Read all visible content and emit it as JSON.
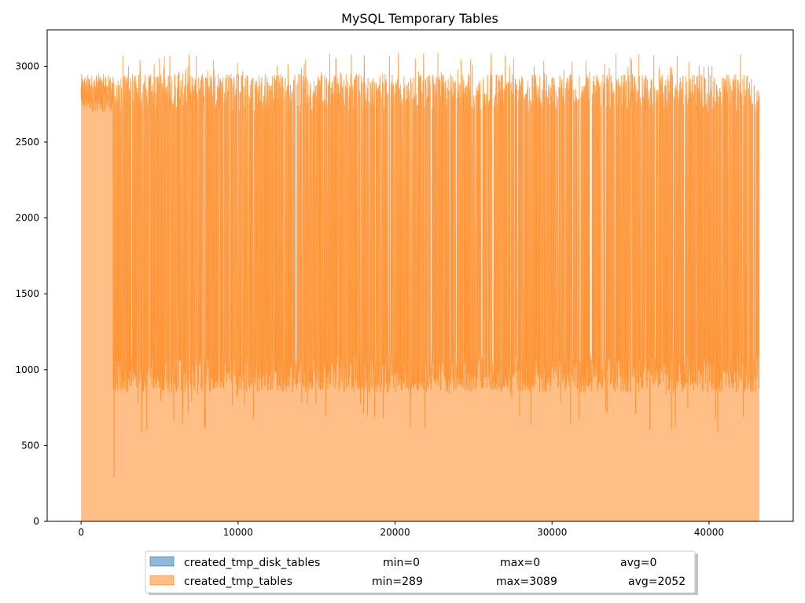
{
  "chart_data": {
    "type": "area",
    "title": "MySQL Temporary Tables",
    "xlabel": "",
    "ylabel": "",
    "xlim": [
      -2160,
      45360
    ],
    "ylim": [
      0,
      3240
    ],
    "x_ticks": [
      0,
      10000,
      20000,
      30000,
      40000
    ],
    "x_tick_labels": [
      "0",
      "10000",
      "20000",
      "30000",
      "40000"
    ],
    "y_ticks": [
      0,
      500,
      1000,
      1500,
      2000,
      2500,
      3000
    ],
    "y_tick_labels": [
      "0",
      "500",
      "1000",
      "1500",
      "2000",
      "2500",
      "3000"
    ],
    "x_range": [
      0,
      43200
    ],
    "grid": false,
    "legend_position": "bottom-center",
    "series": [
      {
        "name": "created_tmp_disk_tables",
        "color": "#1f77b4",
        "min_label": "min=0",
        "max_label": "max=0",
        "avg_label": "avg=0",
        "min": 0,
        "max": 0,
        "avg": 0
      },
      {
        "name": "created_tmp_tables",
        "color": "#ff7f0e",
        "min_label": "min=289",
        "max_label": "max=3089",
        "avg_label": "avg=2052",
        "min": 289,
        "max": 3089,
        "avg": 2052,
        "phases": [
          {
            "x_start": 0,
            "x_end": 2050,
            "low": 2700,
            "high": 2950
          },
          {
            "x_start": 2050,
            "x_end": 43200,
            "low": 1000,
            "high": 2850
          }
        ]
      }
    ]
  }
}
